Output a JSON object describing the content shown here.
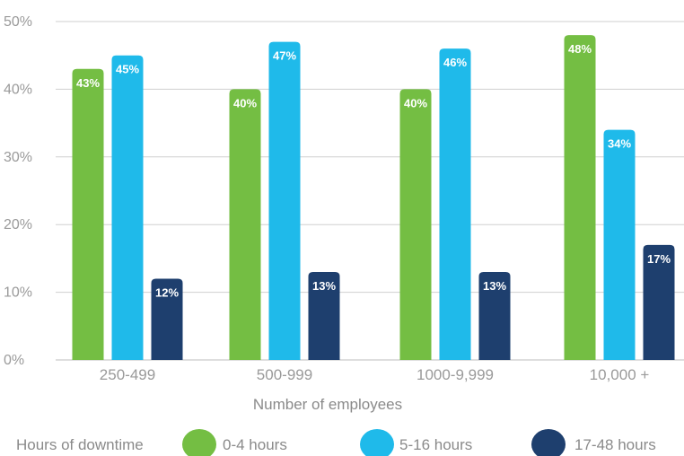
{
  "chart_data": {
    "type": "bar",
    "categories": [
      "250-499",
      "500-999",
      "1000-9,999",
      "10,000 +"
    ],
    "series": [
      {
        "name": "0-4 hours",
        "values": [
          43,
          40,
          40,
          48
        ],
        "labels": [
          "43%",
          "40%",
          "40%",
          "48%"
        ],
        "color": "#74be43"
      },
      {
        "name": "5-16 hours",
        "values": [
          45,
          47,
          46,
          34
        ],
        "labels": [
          "45%",
          "47%",
          "46%",
          "34%"
        ],
        "color": "#1fbaea"
      },
      {
        "name": "17-48 hours",
        "values": [
          12,
          13,
          13,
          17
        ],
        "labels": [
          "12%",
          "13%",
          "13%",
          "17%"
        ],
        "color": "#1e3f6e"
      }
    ],
    "ylim": [
      0,
      50
    ],
    "yticks": [
      "0%",
      "10%",
      "20%",
      "30%",
      "40%",
      "50%"
    ],
    "xlabel": "Number of employees",
    "ylabel": "",
    "title": "",
    "grid": true,
    "legend": {
      "title": "Hours of downtime",
      "placement": "bottom"
    }
  }
}
